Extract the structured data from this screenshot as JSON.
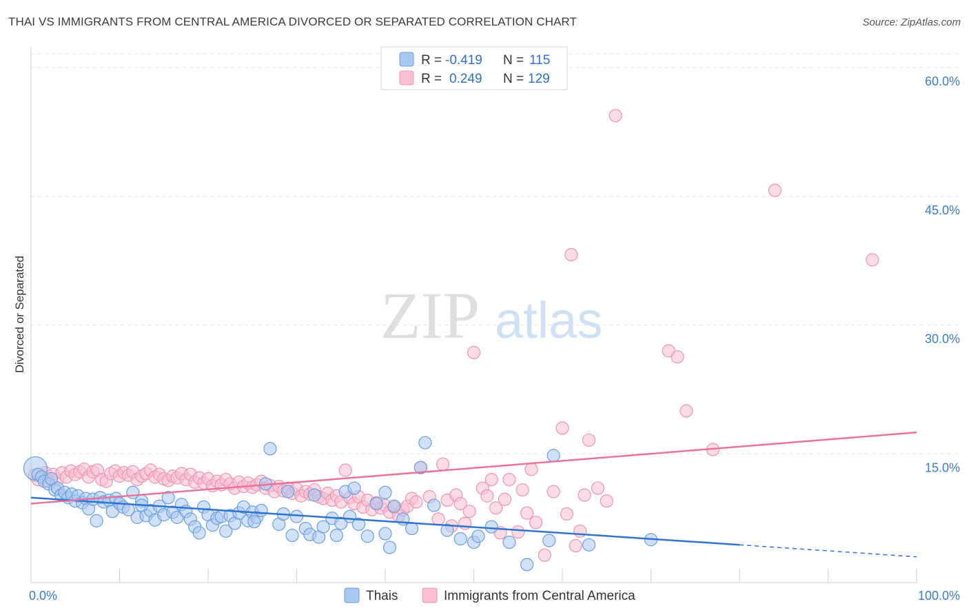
{
  "header": {
    "title": "THAI VS IMMIGRANTS FROM CENTRAL AMERICA DIVORCED OR SEPARATED CORRELATION CHART",
    "source": "Source: ZipAtlas.com"
  },
  "watermark": {
    "part1": "ZIP",
    "part2": "atlas"
  },
  "chart_data": {
    "type": "scatter",
    "ylabel": "Divorced or Separated",
    "xlim": [
      0,
      100
    ],
    "ylim": [
      0,
      60
    ],
    "y_ticks": [
      {
        "value": 15,
        "label": "15.0%"
      },
      {
        "value": 30,
        "label": "30.0%"
      },
      {
        "value": 45,
        "label": "45.0%"
      },
      {
        "value": 60,
        "label": "60.0%"
      }
    ],
    "x_tick_labels": {
      "left": "0.0%",
      "right": "100.0%"
    },
    "grid": "horizontal dashed",
    "legend_position": "top-center",
    "colors": {
      "thais_fill": "#a9c8f0",
      "thais_stroke": "#6a9edc",
      "thais_line": "#2f73d0",
      "central_fill": "#f8bfd1",
      "central_stroke": "#ec94b2",
      "central_line": "#e8739b"
    },
    "legend": [
      {
        "r_label": "R =",
        "r": "-0.419",
        "n_label": "N =",
        "n": "115"
      },
      {
        "r_label": "R =",
        "r": "0.249",
        "n_label": "N =",
        "n": "129"
      }
    ],
    "series": [
      {
        "name": "Thais",
        "trend": {
          "x0": 0,
          "y0": 9.9,
          "x1": 80,
          "y1": 4.4,
          "dash_to_x": 100,
          "dash_to_y": 3.0
        },
        "points": [
          [
            0.5,
            13.3
          ],
          [
            0.8,
            12.6
          ],
          [
            1.2,
            12.3
          ],
          [
            1.5,
            11.8
          ],
          [
            2.0,
            11.5
          ],
          [
            2.3,
            12.1
          ],
          [
            2.7,
            10.8
          ],
          [
            3.0,
            11.0
          ],
          [
            3.4,
            10.2
          ],
          [
            3.8,
            10.5
          ],
          [
            4.2,
            9.9
          ],
          [
            4.6,
            10.3
          ],
          [
            5.0,
            9.5
          ],
          [
            5.3,
            10.1
          ],
          [
            5.8,
            9.3
          ],
          [
            6.2,
            9.8
          ],
          [
            6.5,
            8.6
          ],
          [
            7.0,
            9.7
          ],
          [
            7.4,
            7.2
          ],
          [
            7.8,
            9.9
          ],
          [
            8.2,
            9.4
          ],
          [
            8.8,
            9.6
          ],
          [
            9.2,
            8.3
          ],
          [
            9.6,
            9.8
          ],
          [
            10.0,
            9.2
          ],
          [
            10.4,
            8.8
          ],
          [
            11.0,
            8.5
          ],
          [
            11.5,
            10.5
          ],
          [
            12.0,
            7.6
          ],
          [
            12.5,
            9.5
          ],
          [
            13.0,
            7.8
          ],
          [
            13.5,
            8.4
          ],
          [
            14.0,
            7.3
          ],
          [
            14.5,
            8.9
          ],
          [
            15.0,
            7.9
          ],
          [
            15.5,
            9.9
          ],
          [
            16.0,
            8.2
          ],
          [
            16.5,
            7.6
          ],
          [
            17.0,
            9.1
          ],
          [
            17.5,
            8.3
          ],
          [
            18.0,
            7.4
          ],
          [
            18.5,
            6.5
          ],
          [
            19.0,
            5.8
          ],
          [
            19.5,
            8.8
          ],
          [
            20.0,
            7.9
          ],
          [
            20.5,
            6.7
          ],
          [
            21.0,
            7.5
          ],
          [
            21.5,
            7.7
          ],
          [
            22.0,
            6.0
          ],
          [
            22.5,
            7.8
          ],
          [
            23.0,
            6.9
          ],
          [
            23.5,
            8.1
          ],
          [
            24.0,
            8.8
          ],
          [
            24.5,
            7.2
          ],
          [
            25.0,
            8.2
          ],
          [
            25.5,
            7.6
          ],
          [
            26.0,
            8.4
          ],
          [
            26.5,
            11.5
          ],
          [
            27.0,
            15.6
          ],
          [
            28.0,
            6.8
          ],
          [
            28.5,
            8.0
          ],
          [
            29.0,
            10.6
          ],
          [
            29.5,
            5.5
          ],
          [
            30.0,
            7.7
          ],
          [
            31.0,
            6.3
          ],
          [
            31.5,
            5.6
          ],
          [
            32.0,
            10.2
          ],
          [
            32.5,
            5.3
          ],
          [
            33.0,
            6.5
          ],
          [
            34.0,
            7.5
          ],
          [
            34.5,
            5.5
          ],
          [
            35.0,
            6.9
          ],
          [
            35.5,
            10.6
          ],
          [
            36.0,
            7.7
          ],
          [
            37.0,
            6.8
          ],
          [
            38.0,
            5.4
          ],
          [
            39.0,
            9.2
          ],
          [
            40.0,
            5.7
          ],
          [
            40.5,
            4.1
          ],
          [
            41.0,
            8.9
          ],
          [
            42.0,
            7.4
          ],
          [
            43.0,
            6.3
          ],
          [
            44.0,
            13.4
          ],
          [
            44.5,
            16.3
          ],
          [
            45.5,
            9.0
          ],
          [
            47.0,
            6.1
          ],
          [
            48.5,
            5.1
          ],
          [
            50.0,
            4.7
          ],
          [
            50.5,
            5.4
          ],
          [
            52.0,
            6.5
          ],
          [
            54.0,
            4.7
          ],
          [
            56.0,
            2.1
          ],
          [
            58.5,
            4.9
          ],
          [
            59.0,
            14.8
          ],
          [
            63.0,
            4.4
          ],
          [
            70.0,
            5.0
          ],
          [
            40.0,
            10.5
          ],
          [
            36.5,
            11.0
          ],
          [
            12.5,
            9.0
          ],
          [
            25.2,
            7.1
          ]
        ]
      },
      {
        "name": "Immigrants from Central America",
        "trend": {
          "x0": 0,
          "y0": 9.2,
          "x1": 100,
          "y1": 17.5
        },
        "points": [
          [
            0.4,
            12.5
          ],
          [
            0.8,
            12.0
          ],
          [
            1.2,
            12.4
          ],
          [
            1.6,
            12.8
          ],
          [
            2.0,
            11.8
          ],
          [
            2.5,
            12.6
          ],
          [
            3.0,
            12.0
          ],
          [
            3.5,
            12.8
          ],
          [
            4.0,
            12.3
          ],
          [
            4.5,
            13.0
          ],
          [
            5.0,
            12.6
          ],
          [
            5.5,
            12.9
          ],
          [
            6.0,
            13.2
          ],
          [
            6.5,
            12.3
          ],
          [
            7.0,
            12.9
          ],
          [
            7.5,
            13.1
          ],
          [
            8.0,
            12.0
          ],
          [
            8.5,
            11.8
          ],
          [
            9.0,
            12.7
          ],
          [
            9.5,
            13.0
          ],
          [
            10.0,
            12.4
          ],
          [
            10.5,
            12.8
          ],
          [
            11.0,
            12.5
          ],
          [
            11.5,
            12.9
          ],
          [
            12.0,
            12.0
          ],
          [
            12.5,
            12.4
          ],
          [
            13.0,
            12.7
          ],
          [
            13.5,
            13.1
          ],
          [
            14.0,
            12.3
          ],
          [
            14.5,
            12.6
          ],
          [
            15.0,
            12.1
          ],
          [
            15.5,
            11.9
          ],
          [
            16.0,
            12.4
          ],
          [
            16.5,
            12.2
          ],
          [
            17.0,
            12.7
          ],
          [
            17.5,
            12.0
          ],
          [
            18.0,
            12.6
          ],
          [
            18.5,
            11.7
          ],
          [
            19.0,
            12.2
          ],
          [
            19.5,
            11.6
          ],
          [
            20.0,
            12.1
          ],
          [
            20.5,
            11.3
          ],
          [
            21.0,
            11.8
          ],
          [
            21.5,
            11.4
          ],
          [
            22.0,
            12.0
          ],
          [
            22.5,
            11.5
          ],
          [
            23.0,
            11.0
          ],
          [
            23.5,
            11.7
          ],
          [
            24.0,
            11.2
          ],
          [
            24.5,
            11.6
          ],
          [
            25.0,
            11.1
          ],
          [
            25.5,
            11.4
          ],
          [
            26.0,
            11.8
          ],
          [
            26.5,
            11.0
          ],
          [
            27.0,
            11.3
          ],
          [
            27.5,
            10.6
          ],
          [
            28.0,
            11.2
          ],
          [
            28.5,
            10.7
          ],
          [
            29.0,
            11.0
          ],
          [
            29.5,
            10.4
          ],
          [
            30.0,
            10.9
          ],
          [
            30.5,
            10.1
          ],
          [
            31.0,
            10.6
          ],
          [
            31.5,
            10.3
          ],
          [
            32.0,
            10.8
          ],
          [
            32.5,
            10.0
          ],
          [
            33.0,
            9.8
          ],
          [
            33.5,
            10.4
          ],
          [
            34.0,
            9.6
          ],
          [
            34.5,
            10.1
          ],
          [
            35.0,
            9.4
          ],
          [
            35.5,
            13.1
          ],
          [
            36.0,
            9.9
          ],
          [
            36.5,
            9.2
          ],
          [
            37.0,
            10.0
          ],
          [
            37.5,
            8.8
          ],
          [
            38.0,
            9.6
          ],
          [
            38.5,
            8.5
          ],
          [
            39.0,
            9.3
          ],
          [
            39.5,
            8.7
          ],
          [
            40.0,
            9.0
          ],
          [
            40.5,
            8.2
          ],
          [
            41.0,
            8.8
          ],
          [
            41.5,
            7.8
          ],
          [
            42.0,
            8.5
          ],
          [
            42.5,
            8.9
          ],
          [
            43.0,
            9.8
          ],
          [
            43.5,
            9.4
          ],
          [
            44.0,
            13.4
          ],
          [
            45.0,
            10.0
          ],
          [
            46.0,
            7.4
          ],
          [
            47.0,
            9.6
          ],
          [
            47.5,
            6.6
          ],
          [
            48.0,
            10.2
          ],
          [
            48.5,
            9.2
          ],
          [
            49.0,
            6.9
          ],
          [
            49.5,
            8.3
          ],
          [
            50.0,
            26.8
          ],
          [
            51.0,
            11.0
          ],
          [
            51.5,
            10.1
          ],
          [
            52.0,
            12.0
          ],
          [
            52.5,
            8.7
          ],
          [
            53.0,
            5.8
          ],
          [
            53.5,
            9.7
          ],
          [
            54.0,
            12.0
          ],
          [
            55.0,
            5.9
          ],
          [
            55.5,
            10.8
          ],
          [
            56.0,
            8.1
          ],
          [
            57.0,
            7.0
          ],
          [
            58.0,
            3.2
          ],
          [
            59.0,
            10.6
          ],
          [
            60.0,
            18.0
          ],
          [
            60.5,
            8.0
          ],
          [
            61.0,
            38.2
          ],
          [
            61.5,
            4.3
          ],
          [
            62.0,
            6.0
          ],
          [
            63.0,
            16.6
          ],
          [
            64.0,
            11.0
          ],
          [
            66.0,
            54.4
          ],
          [
            72.0,
            27.0
          ],
          [
            73.0,
            26.3
          ],
          [
            74.0,
            20.0
          ],
          [
            77.0,
            15.5
          ],
          [
            84.0,
            45.7
          ],
          [
            95.0,
            37.6
          ],
          [
            56.5,
            13.2
          ],
          [
            46.5,
            13.8
          ],
          [
            65.0,
            9.5
          ],
          [
            62.5,
            10.2
          ]
        ]
      }
    ]
  }
}
